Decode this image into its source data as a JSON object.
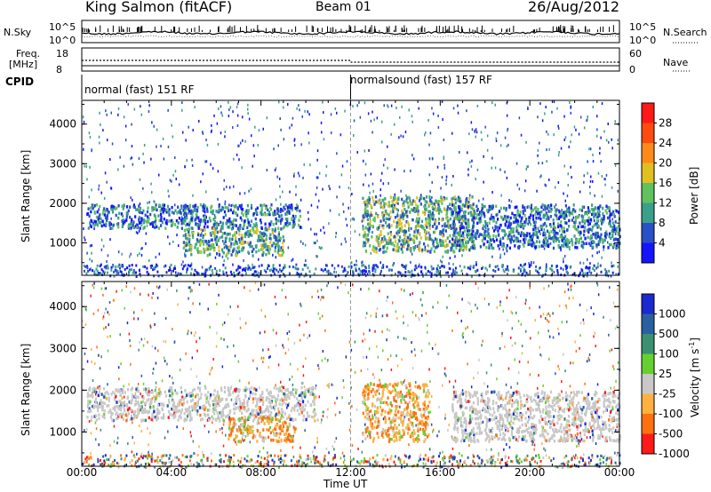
{
  "header": {
    "station": "King Salmon (fitACF)",
    "beam": "Beam 01",
    "date": "26/Aug/2012"
  },
  "status_panels": {
    "nsky_label": "N.Sky",
    "nsky_ticks": [
      "10^5",
      "10^0"
    ],
    "nsearch_label": "N.Search",
    "nsearch_ticks": [
      "10^5",
      "10^0"
    ],
    "freq_label": "Freq.",
    "freq_unit": "[MHz]",
    "freq_ticks": [
      "18",
      "8"
    ],
    "nave_label": "Nave",
    "nave_ticks": [
      "60",
      "0"
    ],
    "cpid_label": "CPID",
    "cpid_segments": [
      {
        "label": "normal (fast) 151 RF",
        "start_hour": 0,
        "end_hour": 12
      },
      {
        "label": "normalsound (fast) 157 RF",
        "start_hour": 12,
        "end_hour": 24
      }
    ]
  },
  "chart_data": [
    {
      "type": "heatmap",
      "name": "power",
      "ylabel": "Slant Range [km]",
      "xlabel": "",
      "yticks": [
        "1000",
        "2000",
        "3000",
        "4000"
      ],
      "ylim": [
        180,
        4600
      ],
      "xlim": [
        0,
        24
      ],
      "colorbar_label": "Power [dB]",
      "colorbar_ticks": [
        "4",
        "8",
        "12",
        "16",
        "20",
        "24",
        "28"
      ],
      "colorbar_colors": [
        "#1414ff",
        "#2a50c8",
        "#3aa08a",
        "#5fc25c",
        "#e0c020",
        "#ff8a1a",
        "#ff4a10",
        "#ff1a1a"
      ],
      "echo_regions": [
        {
          "x0": 0.2,
          "x1": 9.8,
          "y0": 1400,
          "y1": 2000,
          "level": "mixed"
        },
        {
          "x0": 4.5,
          "x1": 9.0,
          "y0": 700,
          "y1": 1400,
          "level": "high"
        },
        {
          "x0": 12.5,
          "x1": 17.5,
          "y0": 800,
          "y1": 2200,
          "level": "high"
        },
        {
          "x0": 16.5,
          "x1": 24,
          "y0": 900,
          "y1": 2000,
          "level": "mixed"
        }
      ]
    },
    {
      "type": "heatmap",
      "name": "velocity",
      "ylabel": "Slant Range [km]",
      "xlabel": "Time UT",
      "yticks": [
        "1000",
        "2000",
        "3000",
        "4000"
      ],
      "xticks": [
        "00:00",
        "04:00",
        "08:00",
        "12:00",
        "16:00",
        "20:00",
        "00:00"
      ],
      "ylim": [
        180,
        4600
      ],
      "xlim": [
        0,
        24
      ],
      "colorbar_label": "Velocity [m s",
      "colorbar_superscript": "-1",
      "colorbar_label_end": "]",
      "colorbar_ticks": [
        "1000",
        "500",
        "100",
        "25",
        "-25",
        "-100",
        "-500",
        "-1000"
      ],
      "colorbar_colors": [
        "#1a2ad0",
        "#2a60a0",
        "#3a9070",
        "#66d030",
        "#c8c8c8",
        "#ffb040",
        "#ff7010",
        "#ff1a1a"
      ],
      "echo_regions": [
        {
          "x0": 0.2,
          "x1": 10.5,
          "y0": 1300,
          "y1": 2100,
          "level": "ground"
        },
        {
          "x0": 6.5,
          "x1": 9.5,
          "y0": 800,
          "y1": 1400,
          "level": "negative"
        },
        {
          "x0": 12.5,
          "x1": 15.5,
          "y0": 800,
          "y1": 2200,
          "level": "negative"
        },
        {
          "x0": 16.5,
          "x1": 24,
          "y0": 800,
          "y1": 2000,
          "level": "ground"
        }
      ]
    }
  ]
}
